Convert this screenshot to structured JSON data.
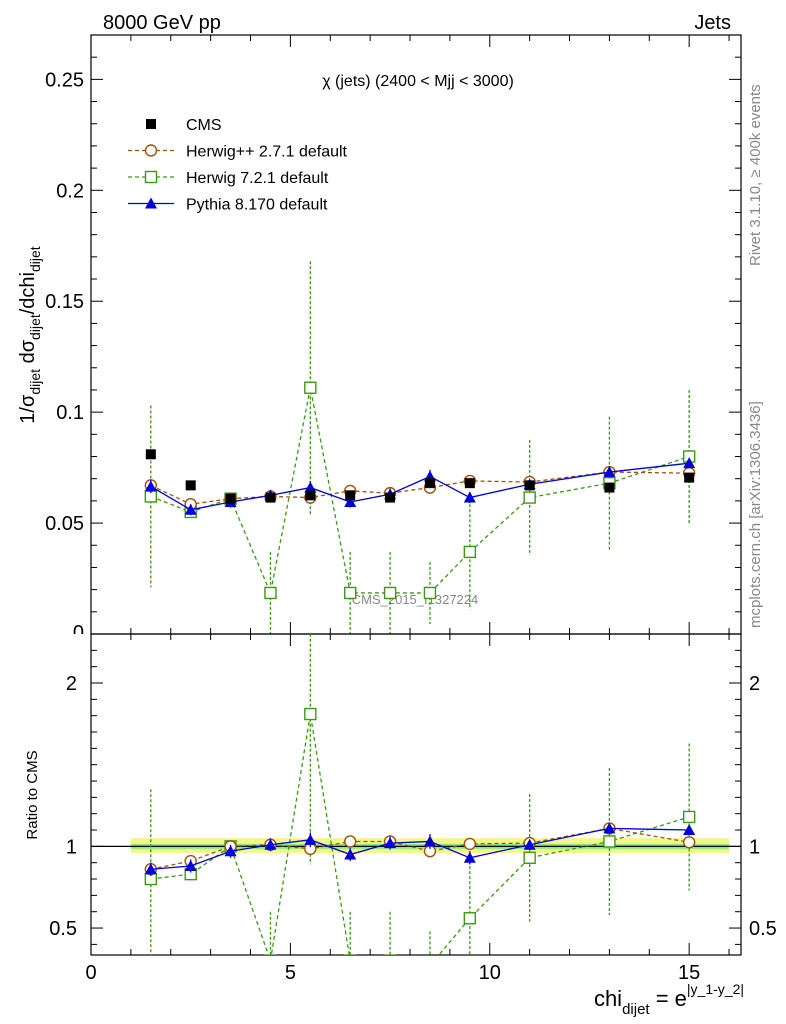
{
  "header": {
    "left": "8000 GeV pp",
    "right": "Jets"
  },
  "side": {
    "rivet": "Rivet 3.1.10, ≥ 400k events",
    "site": "mcplots.cern.ch [arXiv:1306.3436]"
  },
  "watermark": "CMS_2015_I1327224",
  "colors": {
    "cms": "#000000",
    "herwigpp": "#a0520a",
    "herwig7": "#3a9a12",
    "pythia": "#0000dd",
    "band_inner": "#7ff07f",
    "band_outer": "#f5f58a"
  },
  "chart_data": [
    {
      "type": "scatter",
      "title": "χ (jets) (2400 < Mjj < 3000)",
      "ylabel": "1/σ_dijet dσ_dijet/dchi_dijet",
      "xlim": [
        0,
        16.3
      ],
      "ylim": [
        0,
        0.27
      ],
      "yticks": [
        0.05,
        0.1,
        0.15,
        0.2,
        0.25
      ],
      "ytick_labels": [
        "0.05",
        "0.1",
        "0.15",
        "0.2",
        "0.25"
      ],
      "legend_position": "top-left",
      "series": [
        {
          "name": "CMS",
          "key": "cms",
          "marker": "filled-square",
          "x": [
            1.5,
            2.5,
            3.5,
            4.5,
            5.5,
            6.5,
            7.5,
            8.5,
            9.5,
            11.0,
            13.0,
            15.0
          ],
          "y": [
            0.081,
            0.067,
            0.061,
            0.0615,
            0.0625,
            0.0625,
            0.0615,
            0.068,
            0.068,
            0.067,
            0.066,
            0.0705
          ],
          "err": [
            0.001,
            0.001,
            0.001,
            0.001,
            0.001,
            0.001,
            0.001,
            0.001,
            0.001,
            0.001,
            0.001,
            0.001
          ]
        },
        {
          "name": "Herwig++ 2.7.1 default",
          "key": "herwigpp",
          "marker": "open-circle",
          "dashed": true,
          "x": [
            1.5,
            2.5,
            3.5,
            4.5,
            5.5,
            6.5,
            7.5,
            8.5,
            9.5,
            11.0,
            13.0,
            15.0
          ],
          "y": [
            0.067,
            0.0585,
            0.061,
            0.062,
            0.0615,
            0.0645,
            0.0635,
            0.066,
            0.069,
            0.0685,
            0.073,
            0.0725
          ],
          "err": [
            0.001,
            0.001,
            0.001,
            0.001,
            0.001,
            0.001,
            0.001,
            0.001,
            0.001,
            0.001,
            0.001,
            0.001
          ]
        },
        {
          "name": "Herwig 7.2.1 default",
          "key": "herwig7",
          "marker": "open-square",
          "dashed": true,
          "x": [
            1.5,
            2.5,
            3.5,
            4.5,
            5.5,
            6.5,
            7.5,
            8.5,
            9.5,
            11.0,
            13.0,
            15.0
          ],
          "y": [
            0.062,
            0.055,
            0.061,
            0.0185,
            0.111,
            0.0185,
            0.0185,
            0.0185,
            0.037,
            0.0615,
            0.068,
            0.08
          ],
          "err": [
            0.041,
            0.002,
            0.002,
            0.0185,
            0.057,
            0.0185,
            0.0185,
            0.014,
            0.026,
            0.026,
            0.03,
            0.03
          ]
        },
        {
          "name": "Pythia 8.170 default",
          "key": "pythia",
          "marker": "filled-triangle",
          "x": [
            1.5,
            2.5,
            3.5,
            4.5,
            5.5,
            6.5,
            7.5,
            8.5,
            9.5,
            11.0,
            13.0,
            15.0
          ],
          "y": [
            0.0665,
            0.056,
            0.0595,
            0.0625,
            0.066,
            0.0595,
            0.063,
            0.071,
            0.0615,
            0.0675,
            0.073,
            0.077
          ],
          "err": [
            0.003,
            0.0025,
            0.0025,
            0.0025,
            0.003,
            0.0025,
            0.0025,
            0.003,
            0.0025,
            0.002,
            0.002,
            0.002
          ]
        }
      ]
    },
    {
      "type": "scatter",
      "title": "",
      "ylabel": "Ratio to CMS",
      "xlabel": "chi_dijet = e^|y_1-y_2|",
      "xlim": [
        0,
        16.3
      ],
      "ylim": [
        0.335,
        2.3
      ],
      "xticks": [
        0,
        5,
        10,
        15
      ],
      "xtick_labels": [
        "0",
        "5",
        "10",
        "15"
      ],
      "yticks": [
        0.5,
        1,
        2
      ],
      "ytick_labels": [
        "0.5",
        "1",
        "2"
      ],
      "band": {
        "x": [
          1.0,
          16.0
        ],
        "inner": [
          0.985,
          1.015
        ],
        "outer": [
          0.96,
          1.05
        ]
      },
      "series": [
        {
          "name": "Herwig++ 2.7.1 default",
          "key": "herwigpp",
          "marker": "open-circle",
          "dashed": true,
          "x": [
            1.5,
            2.5,
            3.5,
            4.5,
            5.5,
            6.5,
            7.5,
            8.5,
            9.5,
            11.0,
            13.0,
            15.0
          ],
          "y": [
            0.86,
            0.91,
            1.0,
            1.01,
            0.985,
            1.03,
            1.03,
            0.97,
            1.015,
            1.02,
            1.11,
            1.025
          ],
          "err": [
            0.02,
            0.02,
            0.02,
            0.02,
            0.02,
            0.02,
            0.02,
            0.02,
            0.02,
            0.02,
            0.02,
            0.02
          ]
        },
        {
          "name": "Herwig 7.2.1 default",
          "key": "herwig7",
          "marker": "open-square",
          "dashed": true,
          "x": [
            1.5,
            2.5,
            3.5,
            4.5,
            5.5,
            6.5,
            7.5,
            8.5,
            9.5,
            11.0,
            13.0,
            15.0
          ],
          "y": [
            0.8,
            0.83,
            1.0,
            0.3,
            1.81,
            0.3,
            0.3,
            0.27,
            0.56,
            0.93,
            1.03,
            1.18
          ],
          "err": [
            0.55,
            0.03,
            0.03,
            0.3,
            0.92,
            0.3,
            0.3,
            0.21,
            0.38,
            0.39,
            0.45,
            0.45
          ]
        },
        {
          "name": "Pythia 8.170 default",
          "key": "pythia",
          "marker": "filled-triangle",
          "x": [
            1.5,
            2.5,
            3.5,
            4.5,
            5.5,
            6.5,
            7.5,
            8.5,
            9.5,
            11.0,
            13.0,
            15.0
          ],
          "y": [
            0.86,
            0.88,
            0.97,
            1.01,
            1.04,
            0.95,
            1.02,
            1.03,
            0.93,
            1.01,
            1.11,
            1.1
          ],
          "err": [
            0.04,
            0.04,
            0.04,
            0.04,
            0.045,
            0.04,
            0.04,
            0.045,
            0.04,
            0.03,
            0.03,
            0.03
          ]
        }
      ]
    }
  ]
}
